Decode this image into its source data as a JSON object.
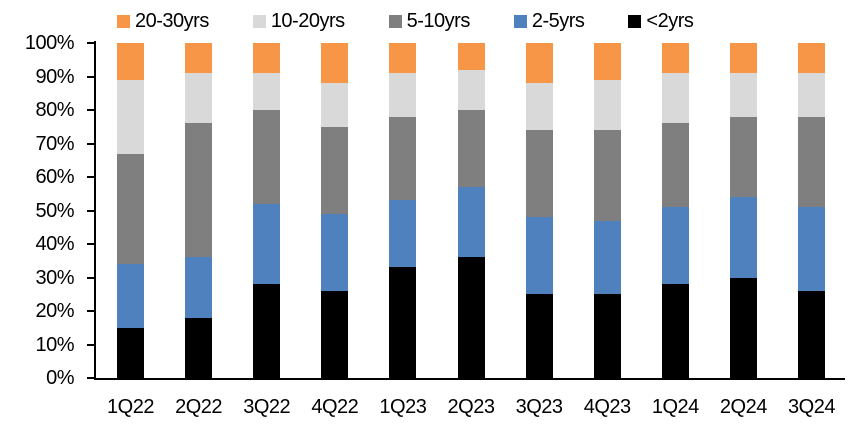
{
  "chart_data": {
    "type": "bar",
    "stacked": true,
    "units": "percent",
    "title": "",
    "xlabel": "",
    "ylabel": "",
    "ylim": [
      0,
      100
    ],
    "ytick_step": 10,
    "ytick_labels": [
      "0%",
      "10%",
      "20%",
      "30%",
      "40%",
      "50%",
      "60%",
      "70%",
      "80%",
      "90%",
      "100%"
    ],
    "grid": false,
    "legend_position": "top",
    "legend_order": [
      "20-30yrs",
      "10-20yrs",
      "5-10yrs",
      "2-5yrs",
      "<2yrs"
    ],
    "categories": [
      "1Q22",
      "2Q22",
      "3Q22",
      "4Q22",
      "1Q23",
      "2Q23",
      "3Q23",
      "4Q23",
      "1Q24",
      "2Q24",
      "3Q24"
    ],
    "series": [
      {
        "name": "<2yrs",
        "color": "#000000",
        "values": [
          15,
          18,
          28,
          26,
          33,
          36,
          25,
          25,
          28,
          30,
          26
        ]
      },
      {
        "name": "2-5yrs",
        "color": "#4E81BD",
        "values": [
          19,
          18,
          24,
          23,
          20,
          21,
          23,
          22,
          23,
          24,
          25
        ]
      },
      {
        "name": "5-10yrs",
        "color": "#7F7F7F",
        "values": [
          33,
          40,
          28,
          26,
          25,
          23,
          26,
          27,
          25,
          24,
          27
        ]
      },
      {
        "name": "10-20yrs",
        "color": "#D9D9D9",
        "values": [
          22,
          15,
          11,
          13,
          13,
          12,
          14,
          15,
          15,
          13,
          13
        ]
      },
      {
        "name": "20-30yrs",
        "color": "#F79646",
        "values": [
          11,
          9,
          9,
          12,
          9,
          8,
          12,
          11,
          9,
          9,
          9
        ]
      }
    ]
  },
  "colors": {
    "axis": "#000000",
    "text": "#000000",
    "background": "#ffffff"
  }
}
